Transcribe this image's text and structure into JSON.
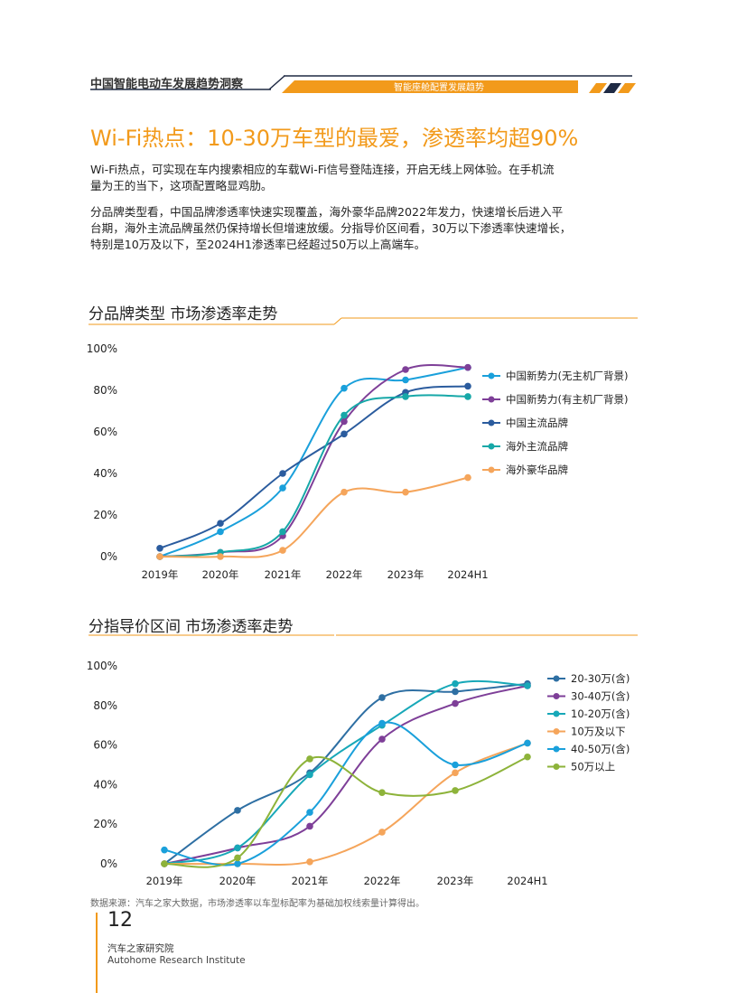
{
  "header": {
    "title": "中国智能电动车发展趋势洞察",
    "subtitle": "智能座舱配置发展趋势",
    "accent": "#F29A1B",
    "dark": "#1F2A44"
  },
  "main_title": "Wi-Fi热点：10-30万车型的最爱，渗透率均超90%",
  "paragraphs": [
    [
      "Wi-Fi热点，可实现在车内搜索相应的车载Wi-Fi信号登陆连接，开启无线上网体验。在手机流",
      "量为王的当下，这项配置略显鸡肋。"
    ],
    [
      "分品牌类型看，中国品牌渗透率快速实现覆盖，海外豪华品牌2022年发力，快速增长后进入平",
      "台期，海外主流品牌虽然仍保持增长但增速放缓。分指导价区间看，30万以下渗透率快速增长，",
      "特别是10万及以下，至2024H1渗透率已经超过50万以上高端车。"
    ]
  ],
  "section_titles": [
    "分品牌类型  市场渗透率走势",
    "分指导价区间  市场渗透率走势"
  ],
  "chart_data": [
    {
      "type": "line",
      "title": "分品牌类型  市场渗透率走势",
      "categories": [
        "2019年",
        "2020年",
        "2021年",
        "2022年",
        "2023年",
        "2024H1"
      ],
      "y_ticks": [
        "100%",
        "80%",
        "60%",
        "40%",
        "20%",
        "0%"
      ],
      "ylim": [
        0,
        100
      ],
      "legend_position": "right",
      "series": [
        {
          "name": "中国新势力(无主机厂背景)",
          "color": "#1AA0DB",
          "values": [
            0,
            12,
            33,
            81,
            85,
            91
          ]
        },
        {
          "name": "中国新势力(有主机厂背景)",
          "color": "#7E3F98",
          "values": [
            0,
            2,
            10,
            65,
            90,
            91
          ]
        },
        {
          "name": "中国主流品牌",
          "color": "#2B5C9E",
          "values": [
            4,
            16,
            40,
            59,
            79,
            82
          ]
        },
        {
          "name": "海外主流品牌",
          "color": "#17A8A8",
          "values": [
            0,
            2,
            12,
            68,
            77,
            77
          ]
        },
        {
          "name": "海外豪华品牌",
          "color": "#F5A55B",
          "values": [
            0,
            0,
            3,
            31,
            31,
            38
          ]
        }
      ]
    },
    {
      "type": "line",
      "title": "分指导价区间  市场渗透率走势",
      "categories": [
        "2019年",
        "2020年",
        "2021年",
        "2022年",
        "2023年",
        "2024H1"
      ],
      "y_ticks": [
        "100%",
        "80%",
        "60%",
        "40%",
        "20%",
        "0%"
      ],
      "ylim": [
        0,
        100
      ],
      "legend_position": "right",
      "series": [
        {
          "name": "20-30万(含)",
          "color": "#2E6FA3",
          "values": [
            0,
            27,
            46,
            84,
            87,
            91
          ]
        },
        {
          "name": "30-40万(含)",
          "color": "#7E3F98",
          "values": [
            0,
            8,
            19,
            63,
            81,
            90
          ]
        },
        {
          "name": "10-20万(含)",
          "color": "#17A8B8",
          "values": [
            0,
            8,
            45,
            70,
            91,
            90
          ]
        },
        {
          "name": "10万及以下",
          "color": "#F5A55B",
          "values": [
            0,
            0,
            1,
            16,
            46,
            61
          ]
        },
        {
          "name": "40-50万(含)",
          "color": "#1AA0DB",
          "values": [
            7,
            0,
            26,
            71,
            50,
            61
          ]
        },
        {
          "name": "50万以上",
          "color": "#8DB33A",
          "values": [
            0,
            3,
            53,
            36,
            37,
            54
          ]
        }
      ]
    }
  ],
  "source": "数据来源：汽车之家大数据，市场渗透率以车型标配率为基础加权线索量计算得出。",
  "page_number": "12",
  "footer": {
    "cn": "汽车之家研究院",
    "en": "Autohome Research Institute"
  }
}
